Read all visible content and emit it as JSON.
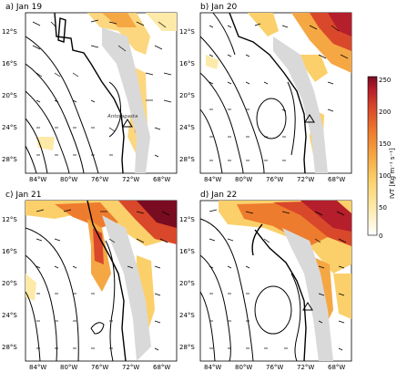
{
  "panels": [
    {
      "title": "a) Jan 19",
      "marker_label": "Antofagasta"
    },
    {
      "title": "b) Jan 20"
    },
    {
      "title": "c) Jan 21"
    },
    {
      "title": "d) Jan 22"
    }
  ],
  "axes": {
    "lat_ticks": [
      "12°S",
      "16°S",
      "20°S",
      "24°S",
      "28°S"
    ],
    "lon_ticks": [
      "84°W",
      "80°W",
      "76°W",
      "72°W",
      "68°W"
    ]
  },
  "colorbar": {
    "title": "IVT [Kg m⁻¹ s⁻¹]",
    "ticks": [
      "250",
      "200",
      "150",
      "100",
      "50",
      "0"
    ],
    "colors": [
      "#fde9a8",
      "#fbd06a",
      "#f5a744",
      "#ee7c2e",
      "#d9482a",
      "#b51e2b",
      "#7a0c22"
    ]
  }
}
